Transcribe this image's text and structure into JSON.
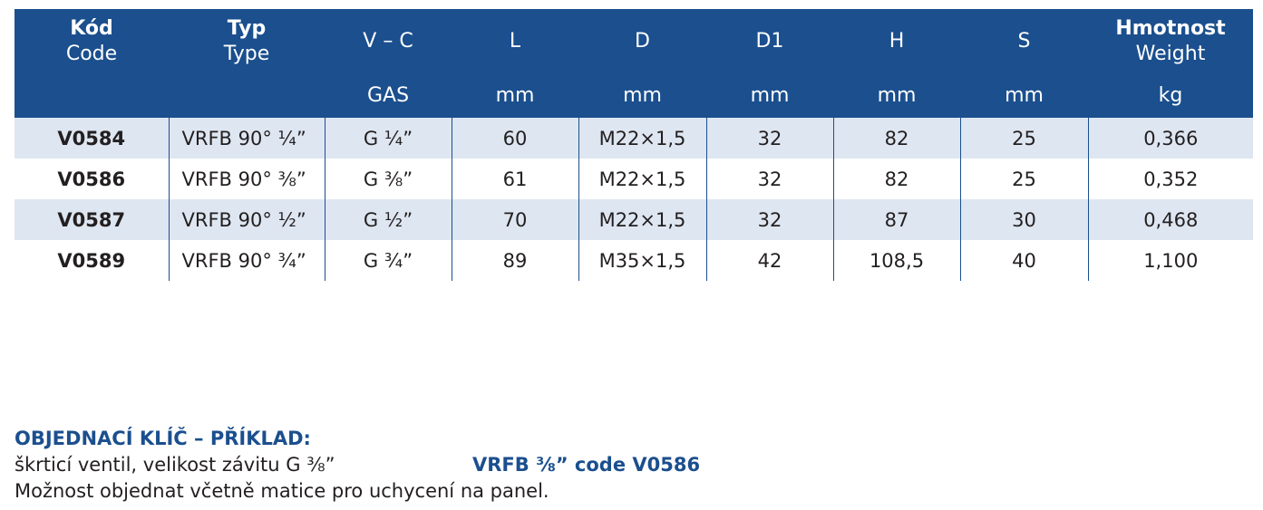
{
  "table": {
    "headers": [
      {
        "line1": "Kód",
        "line2": "Code",
        "unit": ""
      },
      {
        "line1": "Typ",
        "line2": "Type",
        "unit": ""
      },
      {
        "line1": "V – C",
        "line2": "",
        "unit": "GAS"
      },
      {
        "line1": "L",
        "line2": "",
        "unit": "mm"
      },
      {
        "line1": "D",
        "line2": "",
        "unit": "mm"
      },
      {
        "line1": "D1",
        "line2": "",
        "unit": "mm"
      },
      {
        "line1": "H",
        "line2": "",
        "unit": "mm"
      },
      {
        "line1": "S",
        "line2": "",
        "unit": "mm"
      },
      {
        "line1": "Hmotnost",
        "line2": "Weight",
        "unit": "kg"
      }
    ],
    "rows": [
      [
        "V0584",
        "VRFB 90° ¼”",
        "G ¼”",
        "60",
        "M22×1,5",
        "32",
        "82",
        "25",
        "0,366"
      ],
      [
        "V0586",
        "VRFB 90° ⅜”",
        "G ⅜”",
        "61",
        "M22×1,5",
        "32",
        "82",
        "25",
        "0,352"
      ],
      [
        "V0587",
        "VRFB 90° ½”",
        "G ½”",
        "70",
        "M22×1,5",
        "32",
        "87",
        "30",
        "0,468"
      ],
      [
        "V0589",
        "VRFB 90° ¾”",
        "G ¾”",
        "89",
        "M35×1,5",
        "42",
        "108,5",
        "40",
        "1,100"
      ]
    ]
  },
  "order_key": {
    "title": "OBJEDNACÍ KLÍČ – PŘÍKLAD:",
    "description": "škrticí ventil, velikost závitu G ⅜”",
    "example": "VRFB ⅜” code V0586",
    "note": "Možnost objednat včetně matice pro uchycení na panel."
  },
  "colors": {
    "header_bg": "#1b4f8e",
    "row_shade": "#dee6f1",
    "accent_text": "#1b4f8e"
  }
}
